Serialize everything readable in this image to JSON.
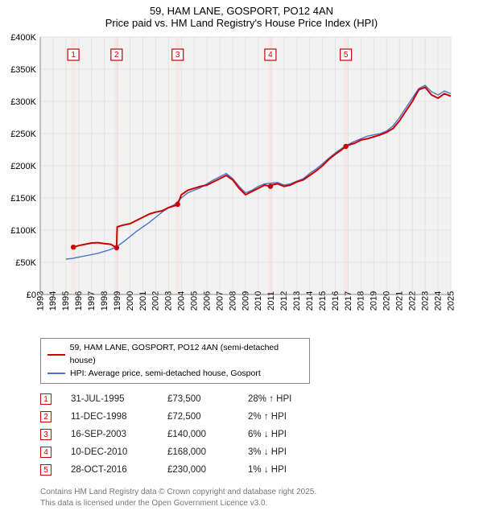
{
  "title": {
    "line1": "59, HAM LANE, GOSPORT, PO12 4AN",
    "line2": "Price paid vs. HM Land Registry's House Price Index (HPI)"
  },
  "chart": {
    "type": "line",
    "background_color": "#ffffff",
    "plot_bg_color": "#f2f2f2",
    "grid_color": "#e2e2e2",
    "marker_stripe_color": "#f7e8e8",
    "axis_color": "#888888",
    "y": {
      "min": 0,
      "max": 400000,
      "step": 50000,
      "prefix": "£",
      "ticks": [
        "£0",
        "£50K",
        "£100K",
        "£150K",
        "£200K",
        "£250K",
        "£300K",
        "£350K",
        "£400K"
      ]
    },
    "x": {
      "min": 1993,
      "max": 2025,
      "step": 1,
      "labels": [
        "1993",
        "1994",
        "1995",
        "1996",
        "1997",
        "1998",
        "1999",
        "2000",
        "2001",
        "2002",
        "2003",
        "2004",
        "2005",
        "2006",
        "2007",
        "2008",
        "2009",
        "2010",
        "2011",
        "2012",
        "2013",
        "2014",
        "2015",
        "2016",
        "2017",
        "2018",
        "2019",
        "2020",
        "2021",
        "2022",
        "2023",
        "2024",
        "2025"
      ]
    },
    "series": [
      {
        "name": "59, HAM LANE, GOSPORT, PO12 4AN (semi-detached house)",
        "color": "#cc0000",
        "line_width": 2,
        "data": [
          [
            1995.58,
            73500
          ],
          [
            1996.0,
            76000
          ],
          [
            1996.5,
            78000
          ],
          [
            1997.0,
            80000
          ],
          [
            1997.5,
            80500
          ],
          [
            1998.0,
            79000
          ],
          [
            1998.5,
            78000
          ],
          [
            1998.95,
            72500
          ],
          [
            1999.0,
            105000
          ],
          [
            1999.5,
            108000
          ],
          [
            2000.0,
            110000
          ],
          [
            2000.5,
            115000
          ],
          [
            2001.0,
            120000
          ],
          [
            2001.5,
            125000
          ],
          [
            2002.0,
            128000
          ],
          [
            2002.5,
            130000
          ],
          [
            2003.0,
            135000
          ],
          [
            2003.5,
            138000
          ],
          [
            2003.71,
            140000
          ],
          [
            2004.0,
            155000
          ],
          [
            2004.5,
            162000
          ],
          [
            2005.0,
            165000
          ],
          [
            2005.5,
            168000
          ],
          [
            2006.0,
            170000
          ],
          [
            2006.5,
            175000
          ],
          [
            2007.0,
            180000
          ],
          [
            2007.5,
            185000
          ],
          [
            2008.0,
            178000
          ],
          [
            2008.5,
            165000
          ],
          [
            2009.0,
            155000
          ],
          [
            2009.5,
            160000
          ],
          [
            2010.0,
            165000
          ],
          [
            2010.5,
            170000
          ],
          [
            2010.94,
            168000
          ],
          [
            2011.0,
            170000
          ],
          [
            2011.5,
            172000
          ],
          [
            2012.0,
            168000
          ],
          [
            2012.5,
            170000
          ],
          [
            2013.0,
            175000
          ],
          [
            2013.5,
            178000
          ],
          [
            2014.0,
            185000
          ],
          [
            2014.5,
            192000
          ],
          [
            2015.0,
            200000
          ],
          [
            2015.5,
            210000
          ],
          [
            2016.0,
            218000
          ],
          [
            2016.5,
            225000
          ],
          [
            2016.82,
            230000
          ],
          [
            2017.0,
            232000
          ],
          [
            2017.5,
            235000
          ],
          [
            2018.0,
            240000
          ],
          [
            2018.5,
            242000
          ],
          [
            2019.0,
            245000
          ],
          [
            2019.5,
            248000
          ],
          [
            2020.0,
            252000
          ],
          [
            2020.5,
            258000
          ],
          [
            2021.0,
            270000
          ],
          [
            2021.5,
            285000
          ],
          [
            2022.0,
            300000
          ],
          [
            2022.5,
            318000
          ],
          [
            2023.0,
            322000
          ],
          [
            2023.5,
            310000
          ],
          [
            2024.0,
            305000
          ],
          [
            2024.5,
            312000
          ],
          [
            2025.0,
            308000
          ]
        ]
      },
      {
        "name": "HPI: Average price, semi-detached house, Gosport",
        "color": "#4a74c9",
        "line_width": 1.4,
        "data": [
          [
            1995.0,
            55000
          ],
          [
            1995.5,
            56000
          ],
          [
            1996.0,
            58000
          ],
          [
            1996.5,
            60000
          ],
          [
            1997.0,
            62000
          ],
          [
            1997.5,
            64000
          ],
          [
            1998.0,
            67000
          ],
          [
            1998.5,
            70000
          ],
          [
            1999.0,
            75000
          ],
          [
            1999.5,
            82000
          ],
          [
            2000.0,
            90000
          ],
          [
            2000.5,
            98000
          ],
          [
            2001.0,
            105000
          ],
          [
            2001.5,
            112000
          ],
          [
            2002.0,
            120000
          ],
          [
            2002.5,
            128000
          ],
          [
            2003.0,
            135000
          ],
          [
            2003.5,
            140000
          ],
          [
            2004.0,
            150000
          ],
          [
            2004.5,
            158000
          ],
          [
            2005.0,
            162000
          ],
          [
            2005.5,
            166000
          ],
          [
            2006.0,
            172000
          ],
          [
            2006.5,
            178000
          ],
          [
            2007.0,
            183000
          ],
          [
            2007.5,
            188000
          ],
          [
            2008.0,
            180000
          ],
          [
            2008.5,
            168000
          ],
          [
            2009.0,
            158000
          ],
          [
            2009.5,
            162000
          ],
          [
            2010.0,
            168000
          ],
          [
            2010.5,
            172000
          ],
          [
            2011.0,
            173000
          ],
          [
            2011.5,
            174000
          ],
          [
            2012.0,
            170000
          ],
          [
            2012.5,
            172000
          ],
          [
            2013.0,
            176000
          ],
          [
            2013.5,
            180000
          ],
          [
            2014.0,
            188000
          ],
          [
            2014.5,
            195000
          ],
          [
            2015.0,
            203000
          ],
          [
            2015.5,
            212000
          ],
          [
            2016.0,
            220000
          ],
          [
            2016.5,
            227000
          ],
          [
            2017.0,
            233000
          ],
          [
            2017.5,
            238000
          ],
          [
            2018.0,
            242000
          ],
          [
            2018.5,
            246000
          ],
          [
            2019.0,
            248000
          ],
          [
            2019.5,
            250000
          ],
          [
            2020.0,
            254000
          ],
          [
            2020.5,
            262000
          ],
          [
            2021.0,
            275000
          ],
          [
            2021.5,
            290000
          ],
          [
            2022.0,
            305000
          ],
          [
            2022.5,
            320000
          ],
          [
            2023.0,
            325000
          ],
          [
            2023.5,
            315000
          ],
          [
            2024.0,
            310000
          ],
          [
            2024.5,
            316000
          ],
          [
            2025.0,
            312000
          ]
        ]
      }
    ],
    "sale_markers": [
      {
        "n": "1",
        "year": 1995.58
      },
      {
        "n": "2",
        "year": 1998.95
      },
      {
        "n": "3",
        "year": 2003.71
      },
      {
        "n": "4",
        "year": 2010.94
      },
      {
        "n": "5",
        "year": 2016.82
      }
    ]
  },
  "legend": {
    "items": [
      {
        "color": "#cc0000",
        "label": "59, HAM LANE, GOSPORT, PO12 4AN (semi-detached house)"
      },
      {
        "color": "#4a74c9",
        "label": "HPI: Average price, semi-detached house, Gosport"
      }
    ]
  },
  "sales": [
    {
      "n": "1",
      "date": "31-JUL-1995",
      "price": "£73,500",
      "diff": "28% ↑ HPI"
    },
    {
      "n": "2",
      "date": "11-DEC-1998",
      "price": "£72,500",
      "diff": "2% ↑ HPI"
    },
    {
      "n": "3",
      "date": "16-SEP-2003",
      "price": "£140,000",
      "diff": "6% ↓ HPI"
    },
    {
      "n": "4",
      "date": "10-DEC-2010",
      "price": "£168,000",
      "diff": "3% ↓ HPI"
    },
    {
      "n": "5",
      "date": "28-OCT-2016",
      "price": "£230,000",
      "diff": "1% ↓ HPI"
    }
  ],
  "footer": {
    "line1": "Contains HM Land Registry data © Crown copyright and database right 2025.",
    "line2": "This data is licensed under the Open Government Licence v3.0."
  }
}
